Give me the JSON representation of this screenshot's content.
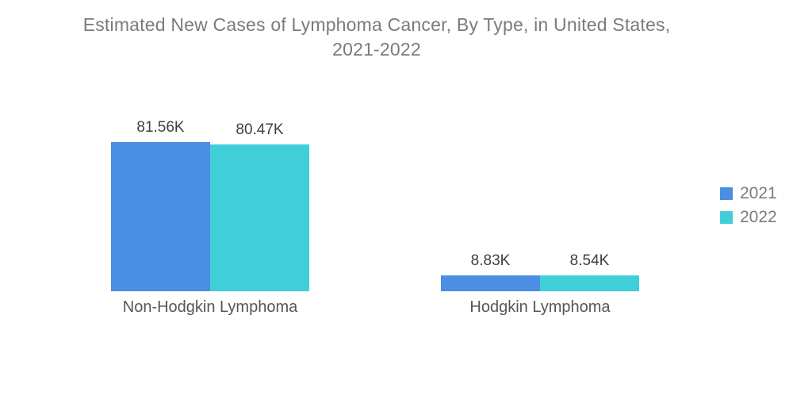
{
  "title_lines": [
    "Estimated New Cases of Lymphoma Cancer, By Type, in United States,",
    "2021-2022"
  ],
  "chart_data": {
    "type": "bar",
    "title": "Estimated New Cases of Lymphoma Cancer, By Type, in United States, 2021-2022",
    "categories": [
      "Non-Hodgkin Lymphoma",
      "Hodgkin Lymphoma"
    ],
    "series": [
      {
        "name": "2021",
        "color": "#4A8FE2",
        "values": [
          81.56,
          8.83
        ],
        "labels": [
          "81.56K",
          "8.83K"
        ]
      },
      {
        "name": "2022",
        "color": "#40CFD9",
        "values": [
          80.47,
          8.54
        ],
        "labels": [
          "80.47K",
          "8.54K"
        ]
      }
    ],
    "value_suffix": "K",
    "xlabel": "",
    "ylabel": "",
    "y_axis_visible": false,
    "grid": false,
    "legend_position": "right",
    "colors": {
      "title_text": "#7b7b7b",
      "value_label_text": "#3f3f3f",
      "category_label_text": "#565656",
      "background": "#ffffff"
    }
  }
}
